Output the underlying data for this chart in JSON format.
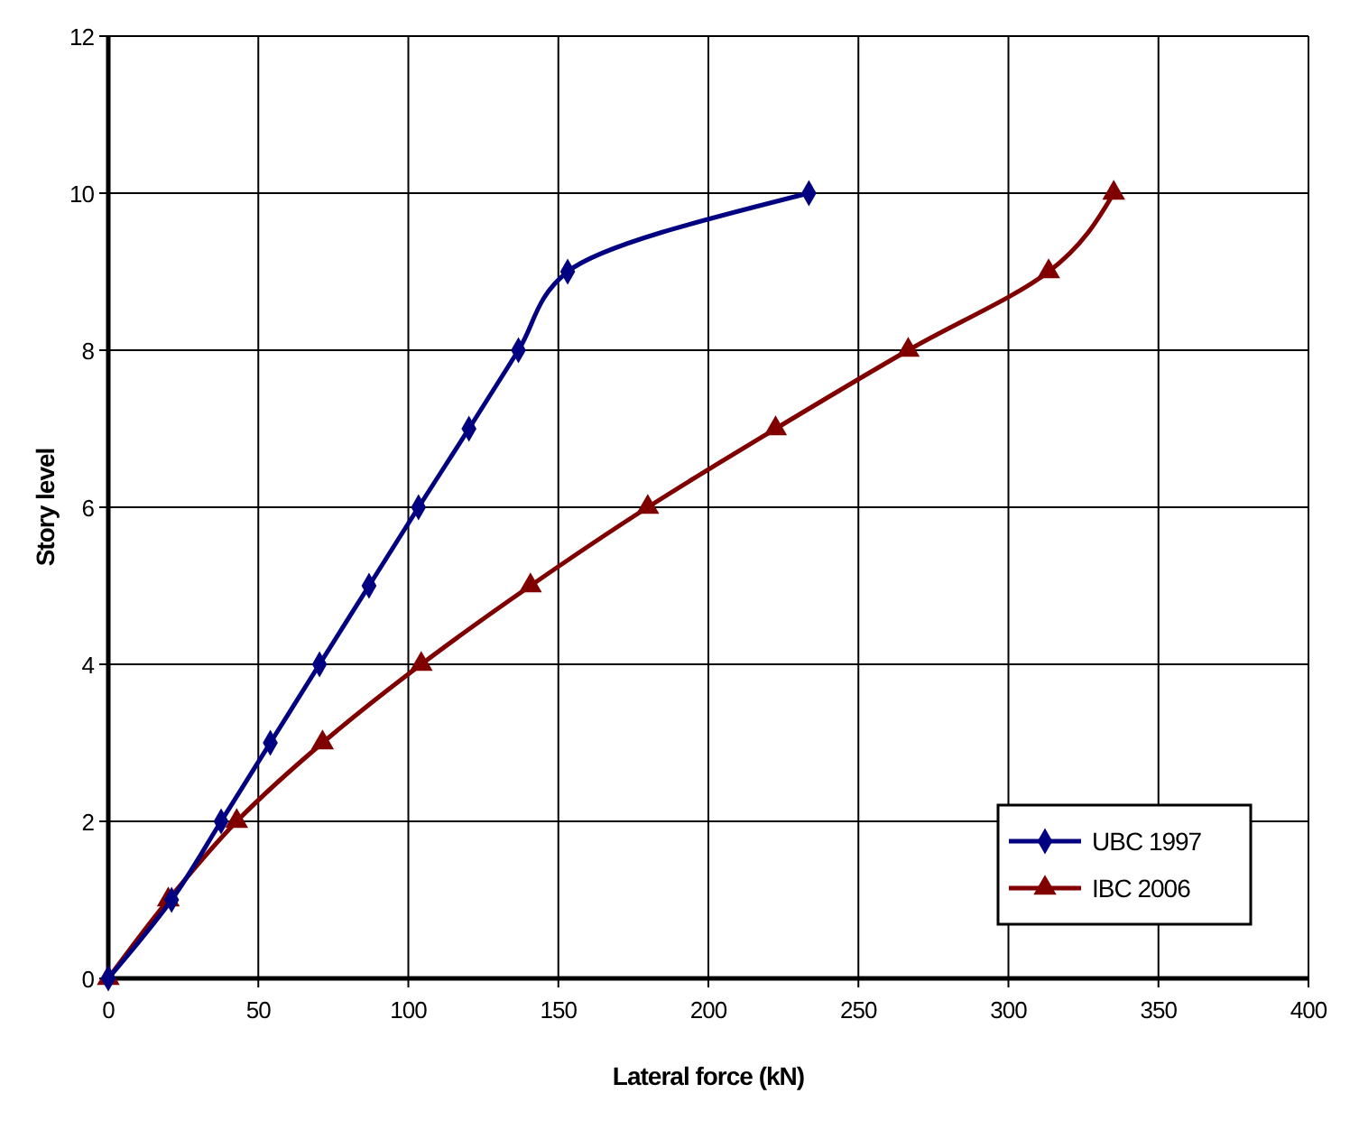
{
  "chart_data": {
    "type": "line",
    "xlabel": "Lateral force (kN)",
    "ylabel": "Story level",
    "xlim": [
      0,
      400
    ],
    "xticks": [
      0,
      50,
      100,
      150,
      200,
      250,
      300,
      350,
      400
    ],
    "ylim": [
      0,
      12
    ],
    "yticks": [
      0,
      2,
      4,
      6,
      8,
      10,
      12
    ],
    "grid": true,
    "legend": "bottom right",
    "line_style": "solid",
    "series": [
      {
        "name": "UBC 1997",
        "color": "#000080",
        "marker": "diamond",
        "x": [
          0,
          21.1,
          37.6,
          54,
          70.4,
          86.9,
          103.4,
          120.2,
          136.7,
          153.1,
          233.5
        ],
        "values": [
          0,
          1,
          2,
          3,
          4,
          5,
          6,
          7,
          8,
          9,
          10
        ]
      },
      {
        "name": "IBC 2006",
        "color": "#800000",
        "marker": "triangle",
        "x": [
          0,
          20,
          42.8,
          71.4,
          104.3,
          140.7,
          179.8,
          222.4,
          266.6,
          313.4,
          335.1
        ],
        "values": [
          0,
          1,
          2,
          3,
          4,
          5,
          6,
          7,
          8,
          9,
          10
        ]
      }
    ]
  }
}
